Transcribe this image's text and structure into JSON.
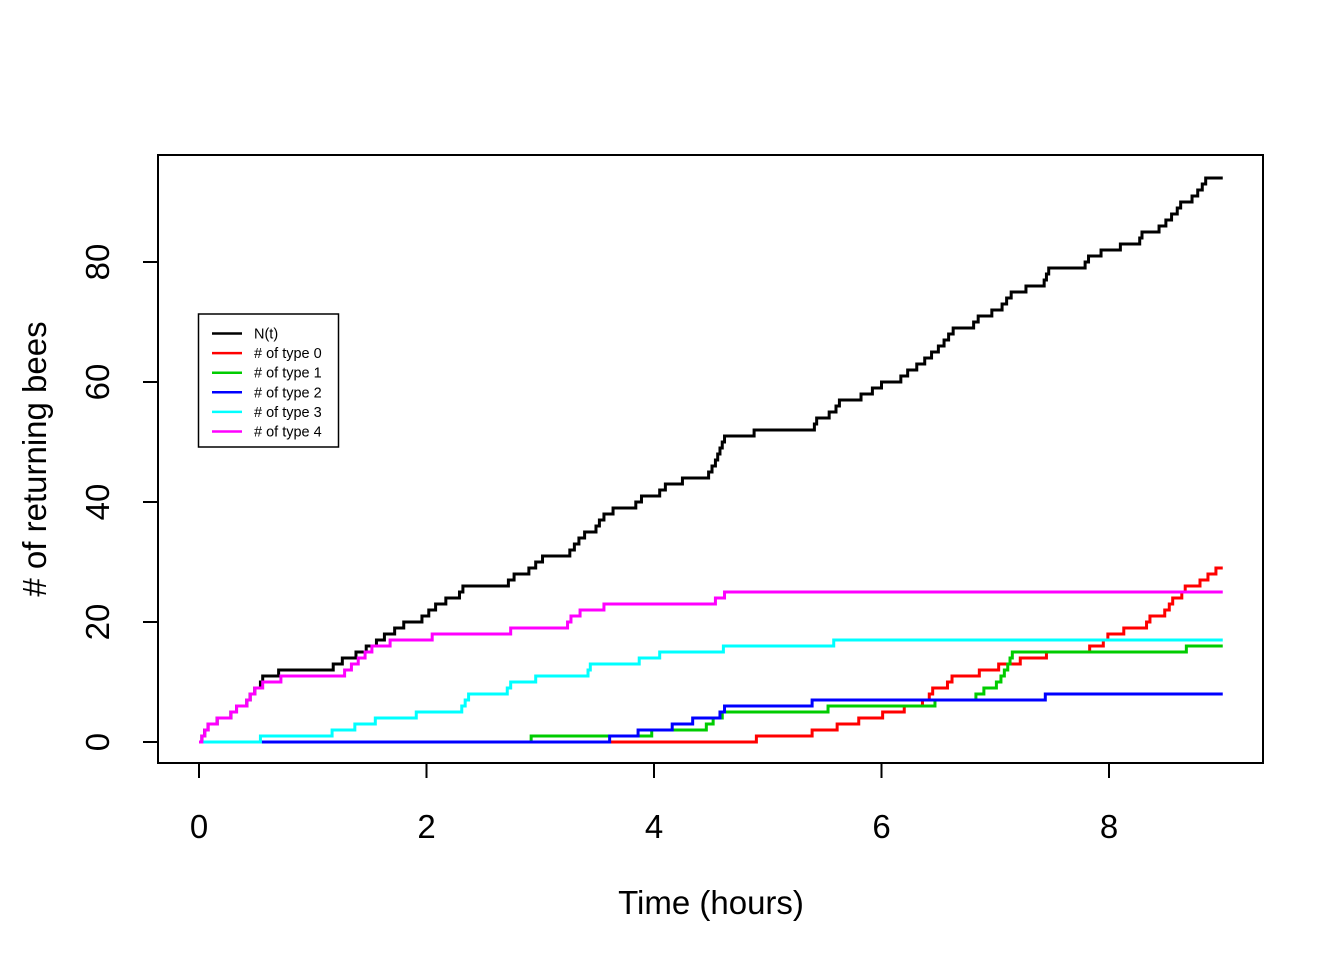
{
  "chart_data": {
    "type": "line",
    "subtype": "step-after",
    "title": "",
    "xlabel": "Time (hours)",
    "ylabel": "# of returning bees",
    "xlim": [
      0,
      9
    ],
    "ylim": [
      0,
      95
    ],
    "x_ticks": [
      0,
      2,
      4,
      6,
      8
    ],
    "y_ticks": [
      0,
      20,
      40,
      60,
      80
    ],
    "grid": false,
    "legend_position": "upper-left-inside",
    "colors": {
      "black": "#000000",
      "red": "#FF0000",
      "green": "#00CC00",
      "blue": "#0000FF",
      "cyan": "#00FFFF",
      "magenta": "#FF00FF"
    },
    "series": [
      {
        "key": "n-t",
        "name": "N(t)",
        "color": "#000000",
        "steps": [
          [
            0.025,
            1
          ],
          [
            0.05,
            2
          ],
          [
            0.08,
            3
          ],
          [
            0.16,
            4
          ],
          [
            0.28,
            5
          ],
          [
            0.33,
            6
          ],
          [
            0.42,
            7
          ],
          [
            0.45,
            8
          ],
          [
            0.49,
            9
          ],
          [
            0.54,
            10
          ],
          [
            0.56,
            11
          ],
          [
            0.7,
            12
          ],
          [
            1.18,
            13
          ],
          [
            1.26,
            14
          ],
          [
            1.38,
            15
          ],
          [
            1.47,
            16
          ],
          [
            1.56,
            17
          ],
          [
            1.63,
            18
          ],
          [
            1.72,
            19
          ],
          [
            1.8,
            20
          ],
          [
            1.96,
            21
          ],
          [
            2.02,
            22
          ],
          [
            2.08,
            23
          ],
          [
            2.17,
            24
          ],
          [
            2.29,
            25
          ],
          [
            2.32,
            26
          ],
          [
            2.72,
            27
          ],
          [
            2.77,
            28
          ],
          [
            2.9,
            29
          ],
          [
            2.96,
            30
          ],
          [
            3.02,
            31
          ],
          [
            3.26,
            32
          ],
          [
            3.3,
            33
          ],
          [
            3.34,
            34
          ],
          [
            3.39,
            35
          ],
          [
            3.49,
            36
          ],
          [
            3.52,
            37
          ],
          [
            3.56,
            38
          ],
          [
            3.64,
            39
          ],
          [
            3.84,
            40
          ],
          [
            3.89,
            41
          ],
          [
            4.05,
            42
          ],
          [
            4.1,
            43
          ],
          [
            4.25,
            44
          ],
          [
            4.48,
            45
          ],
          [
            4.51,
            46
          ],
          [
            4.54,
            47
          ],
          [
            4.56,
            48
          ],
          [
            4.58,
            49
          ],
          [
            4.6,
            50
          ],
          [
            4.62,
            51
          ],
          [
            4.88,
            52
          ],
          [
            5.41,
            53
          ],
          [
            5.43,
            54
          ],
          [
            5.54,
            55
          ],
          [
            5.6,
            56
          ],
          [
            5.63,
            57
          ],
          [
            5.82,
            58
          ],
          [
            5.92,
            59
          ],
          [
            6.0,
            60
          ],
          [
            6.17,
            61
          ],
          [
            6.23,
            62
          ],
          [
            6.31,
            63
          ],
          [
            6.38,
            64
          ],
          [
            6.44,
            65
          ],
          [
            6.5,
            66
          ],
          [
            6.55,
            67
          ],
          [
            6.59,
            68
          ],
          [
            6.63,
            69
          ],
          [
            6.81,
            70
          ],
          [
            6.85,
            71
          ],
          [
            6.97,
            72
          ],
          [
            7.06,
            73
          ],
          [
            7.1,
            74
          ],
          [
            7.14,
            75
          ],
          [
            7.27,
            76
          ],
          [
            7.43,
            77
          ],
          [
            7.45,
            78
          ],
          [
            7.47,
            79
          ],
          [
            7.79,
            80
          ],
          [
            7.82,
            81
          ],
          [
            7.93,
            82
          ],
          [
            8.1,
            83
          ],
          [
            8.27,
            84
          ],
          [
            8.29,
            85
          ],
          [
            8.44,
            86
          ],
          [
            8.5,
            87
          ],
          [
            8.55,
            88
          ],
          [
            8.6,
            89
          ],
          [
            8.63,
            90
          ],
          [
            8.73,
            91
          ],
          [
            8.78,
            92
          ],
          [
            8.82,
            93
          ],
          [
            8.85,
            94
          ]
        ]
      },
      {
        "key": "type-0",
        "name": "# of type 0",
        "color": "#FF0000",
        "steps": [
          [
            4.9,
            1
          ],
          [
            5.39,
            2
          ],
          [
            5.61,
            3
          ],
          [
            5.8,
            4
          ],
          [
            6.01,
            5
          ],
          [
            6.2,
            6
          ],
          [
            6.36,
            7
          ],
          [
            6.42,
            8
          ],
          [
            6.45,
            9
          ],
          [
            6.58,
            10
          ],
          [
            6.62,
            11
          ],
          [
            6.86,
            12
          ],
          [
            7.03,
            13
          ],
          [
            7.22,
            14
          ],
          [
            7.45,
            15
          ],
          [
            7.83,
            16
          ],
          [
            7.95,
            17
          ],
          [
            7.99,
            18
          ],
          [
            8.13,
            19
          ],
          [
            8.33,
            20
          ],
          [
            8.36,
            21
          ],
          [
            8.49,
            22
          ],
          [
            8.53,
            23
          ],
          [
            8.56,
            24
          ],
          [
            8.64,
            25
          ],
          [
            8.67,
            26
          ],
          [
            8.8,
            27
          ],
          [
            8.87,
            28
          ],
          [
            8.94,
            29
          ]
        ]
      },
      {
        "key": "type-1",
        "name": "# of type 1",
        "color": "#00CC00",
        "steps": [
          [
            2.92,
            1
          ],
          [
            3.98,
            2
          ],
          [
            4.46,
            3
          ],
          [
            4.52,
            4
          ],
          [
            4.6,
            5
          ],
          [
            5.53,
            6
          ],
          [
            6.47,
            7
          ],
          [
            6.83,
            8
          ],
          [
            6.9,
            9
          ],
          [
            7.01,
            10
          ],
          [
            7.05,
            11
          ],
          [
            7.08,
            12
          ],
          [
            7.11,
            13
          ],
          [
            7.13,
            14
          ],
          [
            7.15,
            15
          ],
          [
            8.68,
            16
          ]
        ]
      },
      {
        "key": "type-2",
        "name": "# of type 2",
        "color": "#0000FF",
        "steps": [
          [
            3.61,
            1
          ],
          [
            3.86,
            2
          ],
          [
            4.16,
            3
          ],
          [
            4.34,
            4
          ],
          [
            4.58,
            5
          ],
          [
            4.62,
            6
          ],
          [
            5.39,
            7
          ],
          [
            7.44,
            8
          ]
        ]
      },
      {
        "key": "type-3",
        "name": "# of type 3",
        "color": "#00FFFF",
        "steps": [
          [
            0.54,
            1
          ],
          [
            1.17,
            2
          ],
          [
            1.37,
            3
          ],
          [
            1.55,
            4
          ],
          [
            1.91,
            5
          ],
          [
            2.31,
            6
          ],
          [
            2.34,
            7
          ],
          [
            2.37,
            8
          ],
          [
            2.71,
            9
          ],
          [
            2.74,
            10
          ],
          [
            2.96,
            11
          ],
          [
            3.42,
            12
          ],
          [
            3.44,
            13
          ],
          [
            3.87,
            14
          ],
          [
            4.05,
            15
          ],
          [
            4.61,
            16
          ],
          [
            5.58,
            17
          ]
        ]
      },
      {
        "key": "type-4",
        "name": "# of type 4",
        "color": "#FF00FF",
        "steps": [
          [
            0.025,
            1
          ],
          [
            0.05,
            2
          ],
          [
            0.08,
            3
          ],
          [
            0.16,
            4
          ],
          [
            0.28,
            5
          ],
          [
            0.33,
            6
          ],
          [
            0.42,
            7
          ],
          [
            0.45,
            8
          ],
          [
            0.49,
            9
          ],
          [
            0.56,
            10
          ],
          [
            0.72,
            11
          ],
          [
            1.28,
            12
          ],
          [
            1.34,
            13
          ],
          [
            1.4,
            14
          ],
          [
            1.46,
            15
          ],
          [
            1.52,
            16
          ],
          [
            1.68,
            17
          ],
          [
            2.05,
            18
          ],
          [
            2.74,
            19
          ],
          [
            3.24,
            20
          ],
          [
            3.27,
            21
          ],
          [
            3.35,
            22
          ],
          [
            3.56,
            23
          ],
          [
            4.54,
            24
          ],
          [
            4.62,
            25
          ]
        ]
      }
    ]
  }
}
